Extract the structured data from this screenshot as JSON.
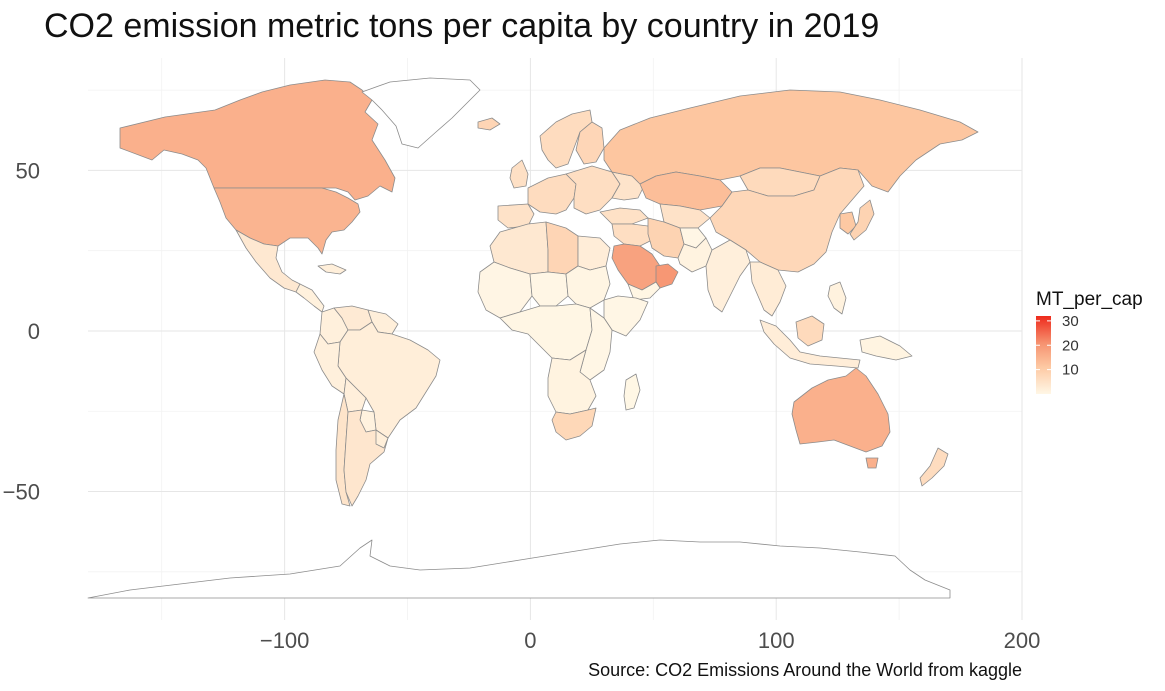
{
  "chart_data": {
    "type": "choropleth",
    "title": "CO2 emission metric tons per capita by country in 2019",
    "caption": "Source: CO2 Emissions Around the World from kaggle",
    "xlabel": "",
    "ylabel": "",
    "xlim": [
      -180,
      200
    ],
    "ylim": [
      -90,
      85
    ],
    "x_ticks": [
      -100,
      0,
      100,
      200
    ],
    "x_tick_labels": [
      "−100",
      "0",
      "100",
      "200"
    ],
    "y_ticks": [
      50,
      0,
      -50
    ],
    "y_tick_labels": [
      "50",
      "0",
      "−50"
    ],
    "grid": true,
    "legend": {
      "title": "MT_per_cap",
      "placement": "right",
      "range": [
        0,
        32
      ],
      "ticks": [
        10,
        20,
        30
      ],
      "tick_labels": [
        "10",
        "20",
        "30"
      ],
      "low_color": "#fff7e6",
      "high_color": "#ee2a1c"
    },
    "regions": [
      {
        "name": "Canada",
        "value": 15.4
      },
      {
        "name": "United States",
        "value": 14.7
      },
      {
        "name": "Mexico",
        "value": 3.5
      },
      {
        "name": "Central America",
        "value": 1.5
      },
      {
        "name": "Cuba",
        "value": 2.0
      },
      {
        "name": "Greenland",
        "value": null
      },
      {
        "name": "Colombia",
        "value": 1.7
      },
      {
        "name": "Venezuela",
        "value": 3.0
      },
      {
        "name": "Guianas",
        "value": 2.0
      },
      {
        "name": "Brazil",
        "value": 2.1
      },
      {
        "name": "Peru",
        "value": 1.6
      },
      {
        "name": "Bolivia",
        "value": 1.8
      },
      {
        "name": "Paraguay",
        "value": 1.2
      },
      {
        "name": "Chile",
        "value": 4.6
      },
      {
        "name": "Argentina",
        "value": 4.0
      },
      {
        "name": "Uruguay",
        "value": 2.0
      },
      {
        "name": "Iceland",
        "value": 8.0
      },
      {
        "name": "Scandinavia",
        "value": 6.5
      },
      {
        "name": "Finland",
        "value": 7.8
      },
      {
        "name": "United Kingdom",
        "value": 5.5
      },
      {
        "name": "Western Europe",
        "value": 6.5
      },
      {
        "name": "Iberia",
        "value": 5.0
      },
      {
        "name": "Eastern Europe",
        "value": 6.0
      },
      {
        "name": "Ukraine",
        "value": 4.5
      },
      {
        "name": "Russia",
        "value": 11.5
      },
      {
        "name": "Kazakhstan",
        "value": 13.0
      },
      {
        "name": "Central Asia",
        "value": 5.0
      },
      {
        "name": "Turkey",
        "value": 5.2
      },
      {
        "name": "Middle East",
        "value": 6.0
      },
      {
        "name": "Iran",
        "value": 8.5
      },
      {
        "name": "Afghanistan",
        "value": 0.2
      },
      {
        "name": "Pakistan",
        "value": 1.0
      },
      {
        "name": "Saudi Arabia",
        "value": 18.0
      },
      {
        "name": "UAE Oman",
        "value": 20.0
      },
      {
        "name": "Yemen",
        "value": 0.3
      },
      {
        "name": "Mongolia",
        "value": 7.0
      },
      {
        "name": "China",
        "value": 7.6
      },
      {
        "name": "India",
        "value": 1.8
      },
      {
        "name": "Southeast Asia",
        "value": 2.6
      },
      {
        "name": "Korea",
        "value": 11.0
      },
      {
        "name": "Japan",
        "value": 8.5
      },
      {
        "name": "Indonesia",
        "value": 2.3
      },
      {
        "name": "Borneo",
        "value": 7.0
      },
      {
        "name": "Philippines",
        "value": 1.3
      },
      {
        "name": "Papua New Guinea",
        "value": 0.8
      },
      {
        "name": "Australia",
        "value": 15.5
      },
      {
        "name": "New Zealand",
        "value": 6.5
      },
      {
        "name": "North Africa",
        "value": 3.5
      },
      {
        "name": "Libya",
        "value": 8.0
      },
      {
        "name": "Egypt",
        "value": 2.3
      },
      {
        "name": "West Africa",
        "value": 0.4
      },
      {
        "name": "Sahel",
        "value": 0.2
      },
      {
        "name": "Sudan",
        "value": 0.5
      },
      {
        "name": "Horn of Africa",
        "value": 0.2
      },
      {
        "name": "Central Africa",
        "value": 0.3
      },
      {
        "name": "East Africa",
        "value": 0.2
      },
      {
        "name": "Southern Africa",
        "value": 1.0
      },
      {
        "name": "South Africa",
        "value": 7.5
      },
      {
        "name": "Madagascar",
        "value": 0.1
      },
      {
        "name": "Antarctica",
        "value": null
      }
    ]
  }
}
